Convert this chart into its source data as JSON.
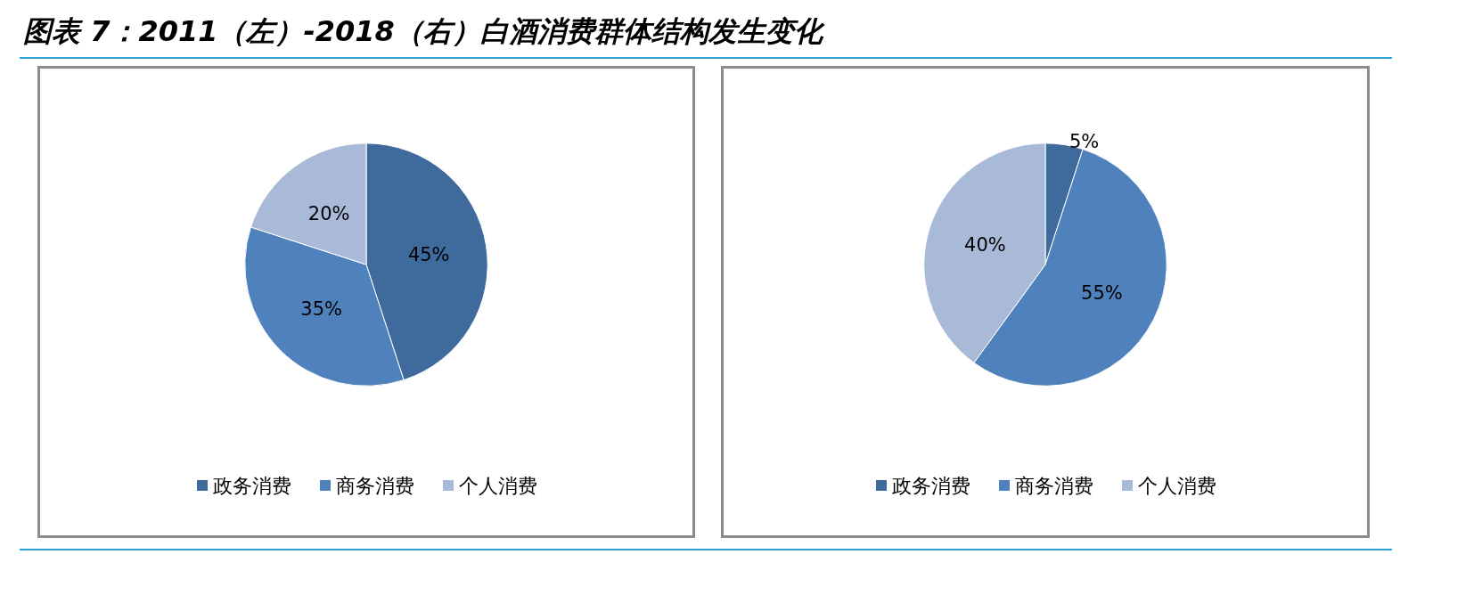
{
  "chart_data": [
    {
      "type": "pie",
      "title": "图表 7：2011（左）-2018（右）白酒消费群体结构发生变化",
      "categories": [
        "政务消费",
        "商务消费",
        "个人消费"
      ],
      "values": [
        45,
        35,
        20
      ],
      "value_labels": [
        "45%",
        "35%",
        "20%"
      ],
      "colors": [
        "#3f6a9c",
        "#4f81bd",
        "#a9b9d8"
      ],
      "legend": "bottom"
    },
    {
      "type": "pie",
      "categories": [
        "政务消费",
        "商务消费",
        "个人消费"
      ],
      "values": [
        5,
        55,
        40
      ],
      "value_labels": [
        "5%",
        "55%",
        "40%"
      ],
      "colors": [
        "#3f6a9c",
        "#4f81bd",
        "#a9b9d8"
      ],
      "legend": "bottom"
    }
  ]
}
